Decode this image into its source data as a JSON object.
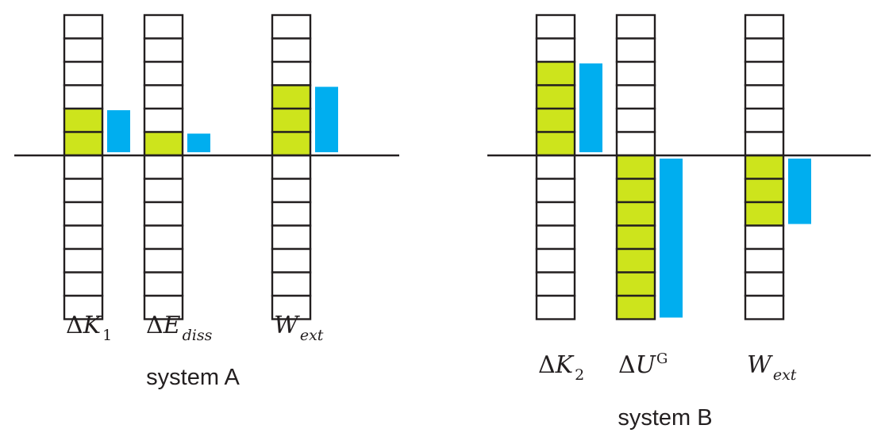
{
  "colors": {
    "grid_fill": "#ffffff",
    "grid_stroke": "#231f20",
    "filled_cell": "#cde41c",
    "bar": "#00aeef",
    "axis": "#231f20",
    "text": "#231f20"
  },
  "systems": [
    {
      "label": "system A",
      "columns": [
        {
          "sym": "ΔK",
          "sub": "1",
          "sup": "",
          "cells_filled": 2
        },
        {
          "sym": "ΔE",
          "sub": "diss",
          "sup": "",
          "cells_filled": 1
        },
        {
          "sym": "W",
          "sub": "ext",
          "sup": "",
          "cells_filled": 3
        }
      ]
    },
    {
      "label": "system B",
      "columns": [
        {
          "sym": "ΔK",
          "sub": "2",
          "sup": "",
          "cells_filled": 4
        },
        {
          "sym": "ΔU",
          "sub": "",
          "sup": "G",
          "cells_filled": -7
        },
        {
          "sym": "W",
          "sub": "ext",
          "sup": "",
          "cells_filled": -3
        }
      ]
    }
  ]
}
